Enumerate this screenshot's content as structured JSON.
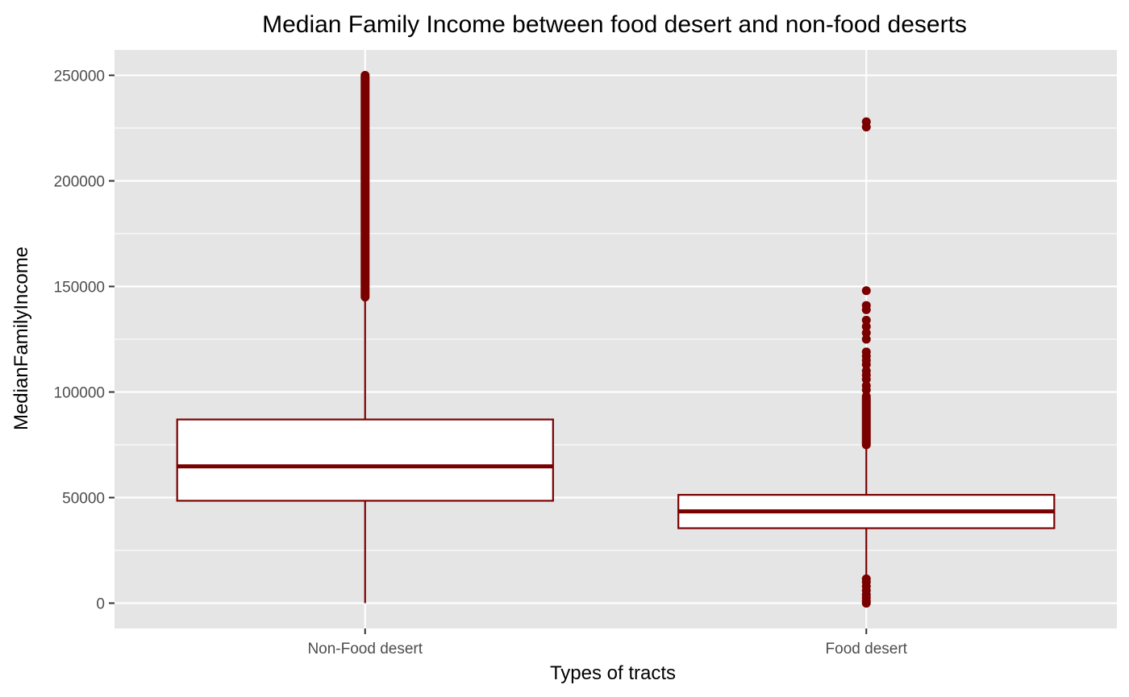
{
  "chart_data": {
    "type": "boxplot",
    "title": "Median Family Income between food desert and non-food deserts",
    "xlabel": "Types of tracts",
    "ylabel": "MedianFamilyIncome",
    "ylim": [
      -12000,
      262000
    ],
    "yticks": [
      0,
      50000,
      100000,
      150000,
      200000,
      250000
    ],
    "ytick_labels": [
      "0",
      "50000",
      "100000",
      "150000",
      "200000",
      "250000"
    ],
    "grid": true,
    "legend": "none",
    "colors": {
      "panel": "#e5e5e5",
      "grid": "#ffffff",
      "box_stroke": "#7a0000",
      "box_fill": "#ffffff",
      "outlier": "#7a0000",
      "tick_label": "#4d4d4d"
    },
    "categories": [
      "Non-Food desert",
      "Food desert"
    ],
    "boxes": [
      {
        "category": "Non-Food desert",
        "whisker_low": 0,
        "q1": 48500,
        "median": 64800,
        "q3": 87000,
        "whisker_high": 145000,
        "outliers_range": [
          145000,
          250000
        ],
        "outliers": []
      },
      {
        "category": "Food desert",
        "whisker_low": 12000,
        "q1": 35500,
        "median": 43500,
        "q3": 51300,
        "whisker_high": 75000,
        "outliers_range": [
          75000,
          97000
        ],
        "outliers": [
          0,
          1000,
          2500,
          4000,
          6000,
          8000,
          10000,
          11500,
          98000,
          101000,
          103000,
          106000,
          108000,
          110000,
          113000,
          115000,
          117000,
          119000,
          125000,
          128000,
          131000,
          134000,
          139000,
          141000,
          148000,
          225500,
          228000
        ]
      }
    ]
  }
}
